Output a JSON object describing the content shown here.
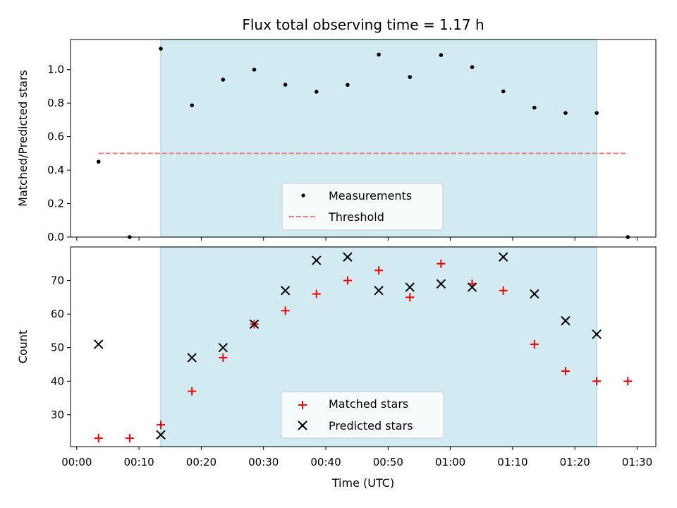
{
  "chart_data": [
    {
      "type": "scatter",
      "title": "Flux total observing time = 1.17 h",
      "xlabel": "",
      "ylabel": "Matched/Predicted stars",
      "xlim": [
        "-00:01",
        "01:33"
      ],
      "ylim": [
        0,
        1.18
      ],
      "yticks": [
        "0.0",
        "0.2",
        "0.4",
        "0.6",
        "0.8",
        "1.0"
      ],
      "shaded_region": [
        "00:13:30",
        "01:23:30"
      ],
      "shaded_color": "#add8e6",
      "legend": "lower center",
      "series": [
        {
          "name": "Measurements",
          "marker": "dot",
          "color": "#000000",
          "x": [
            "00:03:30",
            "00:08:30",
            "00:13:30",
            "00:18:30",
            "00:23:30",
            "00:28:30",
            "00:33:30",
            "00:38:30",
            "00:43:30",
            "00:48:30",
            "00:53:30",
            "00:58:30",
            "01:03:30",
            "01:08:30",
            "01:13:30",
            "01:18:30",
            "01:23:30",
            "01:28:30"
          ],
          "y": [
            0.45,
            0.0,
            1.125,
            0.787,
            0.94,
            1.0,
            0.91,
            0.868,
            0.909,
            1.09,
            0.956,
            1.087,
            1.015,
            0.87,
            0.773,
            0.741,
            0.741,
            0.0
          ]
        },
        {
          "name": "Threshold",
          "marker": "dashed-line",
          "color": "#f08080",
          "x": [
            "00:03:30",
            "01:28:30"
          ],
          "y": [
            0.5,
            0.5
          ]
        }
      ]
    },
    {
      "type": "scatter",
      "title": "",
      "xlabel": "Time (UTC)",
      "ylabel": "Count",
      "xlim": [
        "-00:01",
        "01:33"
      ],
      "ylim": [
        20.5,
        80
      ],
      "xticks": [
        "00:00",
        "00:10",
        "00:20",
        "00:30",
        "00:40",
        "00:50",
        "01:00",
        "01:10",
        "01:20",
        "01:30"
      ],
      "yticks": [
        "30",
        "40",
        "50",
        "60",
        "70"
      ],
      "shaded_region": [
        "00:13:30",
        "01:23:30"
      ],
      "shaded_color": "#add8e6",
      "legend": "lower center",
      "series": [
        {
          "name": "Matched stars",
          "marker": "plus",
          "color": "#ff0000",
          "x": [
            "00:03:30",
            "00:08:30",
            "00:13:30",
            "00:18:30",
            "00:23:30",
            "00:28:30",
            "00:33:30",
            "00:38:30",
            "00:43:30",
            "00:48:30",
            "00:53:30",
            "00:58:30",
            "01:03:30",
            "01:08:30",
            "01:13:30",
            "01:18:30",
            "01:23:30",
            "01:28:30"
          ],
          "y": [
            23,
            23,
            27,
            37,
            47,
            57,
            61,
            66,
            70,
            73,
            65,
            75,
            69,
            67,
            51,
            43,
            40,
            40
          ]
        },
        {
          "name": "Predicted stars",
          "marker": "x",
          "color": "#000000",
          "x": [
            "00:03:30",
            "00:13:30",
            "00:18:30",
            "00:23:30",
            "00:28:30",
            "00:33:30",
            "00:38:30",
            "00:43:30",
            "00:48:30",
            "00:53:30",
            "00:58:30",
            "01:03:30",
            "01:08:30",
            "01:13:30",
            "01:18:30",
            "01:23:30"
          ],
          "y": [
            51,
            24,
            47,
            50,
            57,
            67,
            76,
            77,
            67,
            68,
            69,
            68,
            77,
            66,
            58,
            54
          ]
        }
      ]
    }
  ]
}
